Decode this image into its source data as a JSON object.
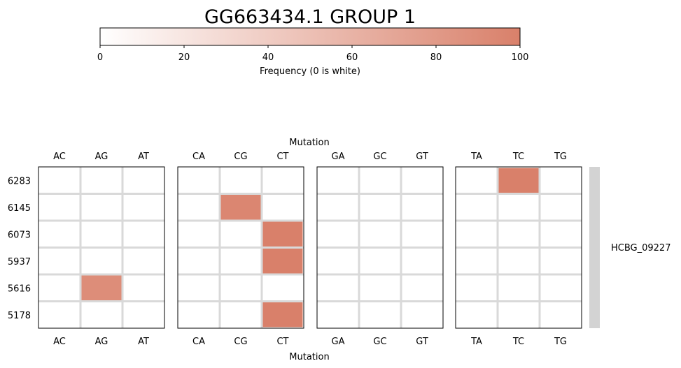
{
  "chart_data": {
    "type": "heatmap",
    "title": "GG663434.1 GROUP 1",
    "colorbar": {
      "label": "Frequency (0 is white)",
      "range": [
        0,
        100
      ],
      "ticks": [
        "0",
        "20",
        "40",
        "60",
        "80",
        "100"
      ],
      "color_low": "#ffffff",
      "color_high": "#d9806a"
    },
    "xlabel_top": "Mutation",
    "xlabel_bottom": "Mutation",
    "rows": [
      "6283",
      "6145",
      "6073",
      "5937",
      "5616",
      "5178"
    ],
    "panels": [
      {
        "columns": [
          "AC",
          "AG",
          "AT"
        ]
      },
      {
        "columns": [
          "CA",
          "CG",
          "CT"
        ]
      },
      {
        "columns": [
          "GA",
          "GC",
          "GT"
        ]
      },
      {
        "columns": [
          "TA",
          "TC",
          "TG"
        ]
      }
    ],
    "cells": [
      {
        "row": "6283",
        "mutation": "TC",
        "value": 100
      },
      {
        "row": "6145",
        "mutation": "CG",
        "value": 95
      },
      {
        "row": "6073",
        "mutation": "CT",
        "value": 100
      },
      {
        "row": "5937",
        "mutation": "CT",
        "value": 100
      },
      {
        "row": "5616",
        "mutation": "AG",
        "value": 90
      },
      {
        "row": "5178",
        "mutation": "CT",
        "value": 100
      }
    ],
    "side_label": "HCBG_09227",
    "side_bar_color": "#d3d3d3",
    "grid_color": "#d9d9d9"
  }
}
